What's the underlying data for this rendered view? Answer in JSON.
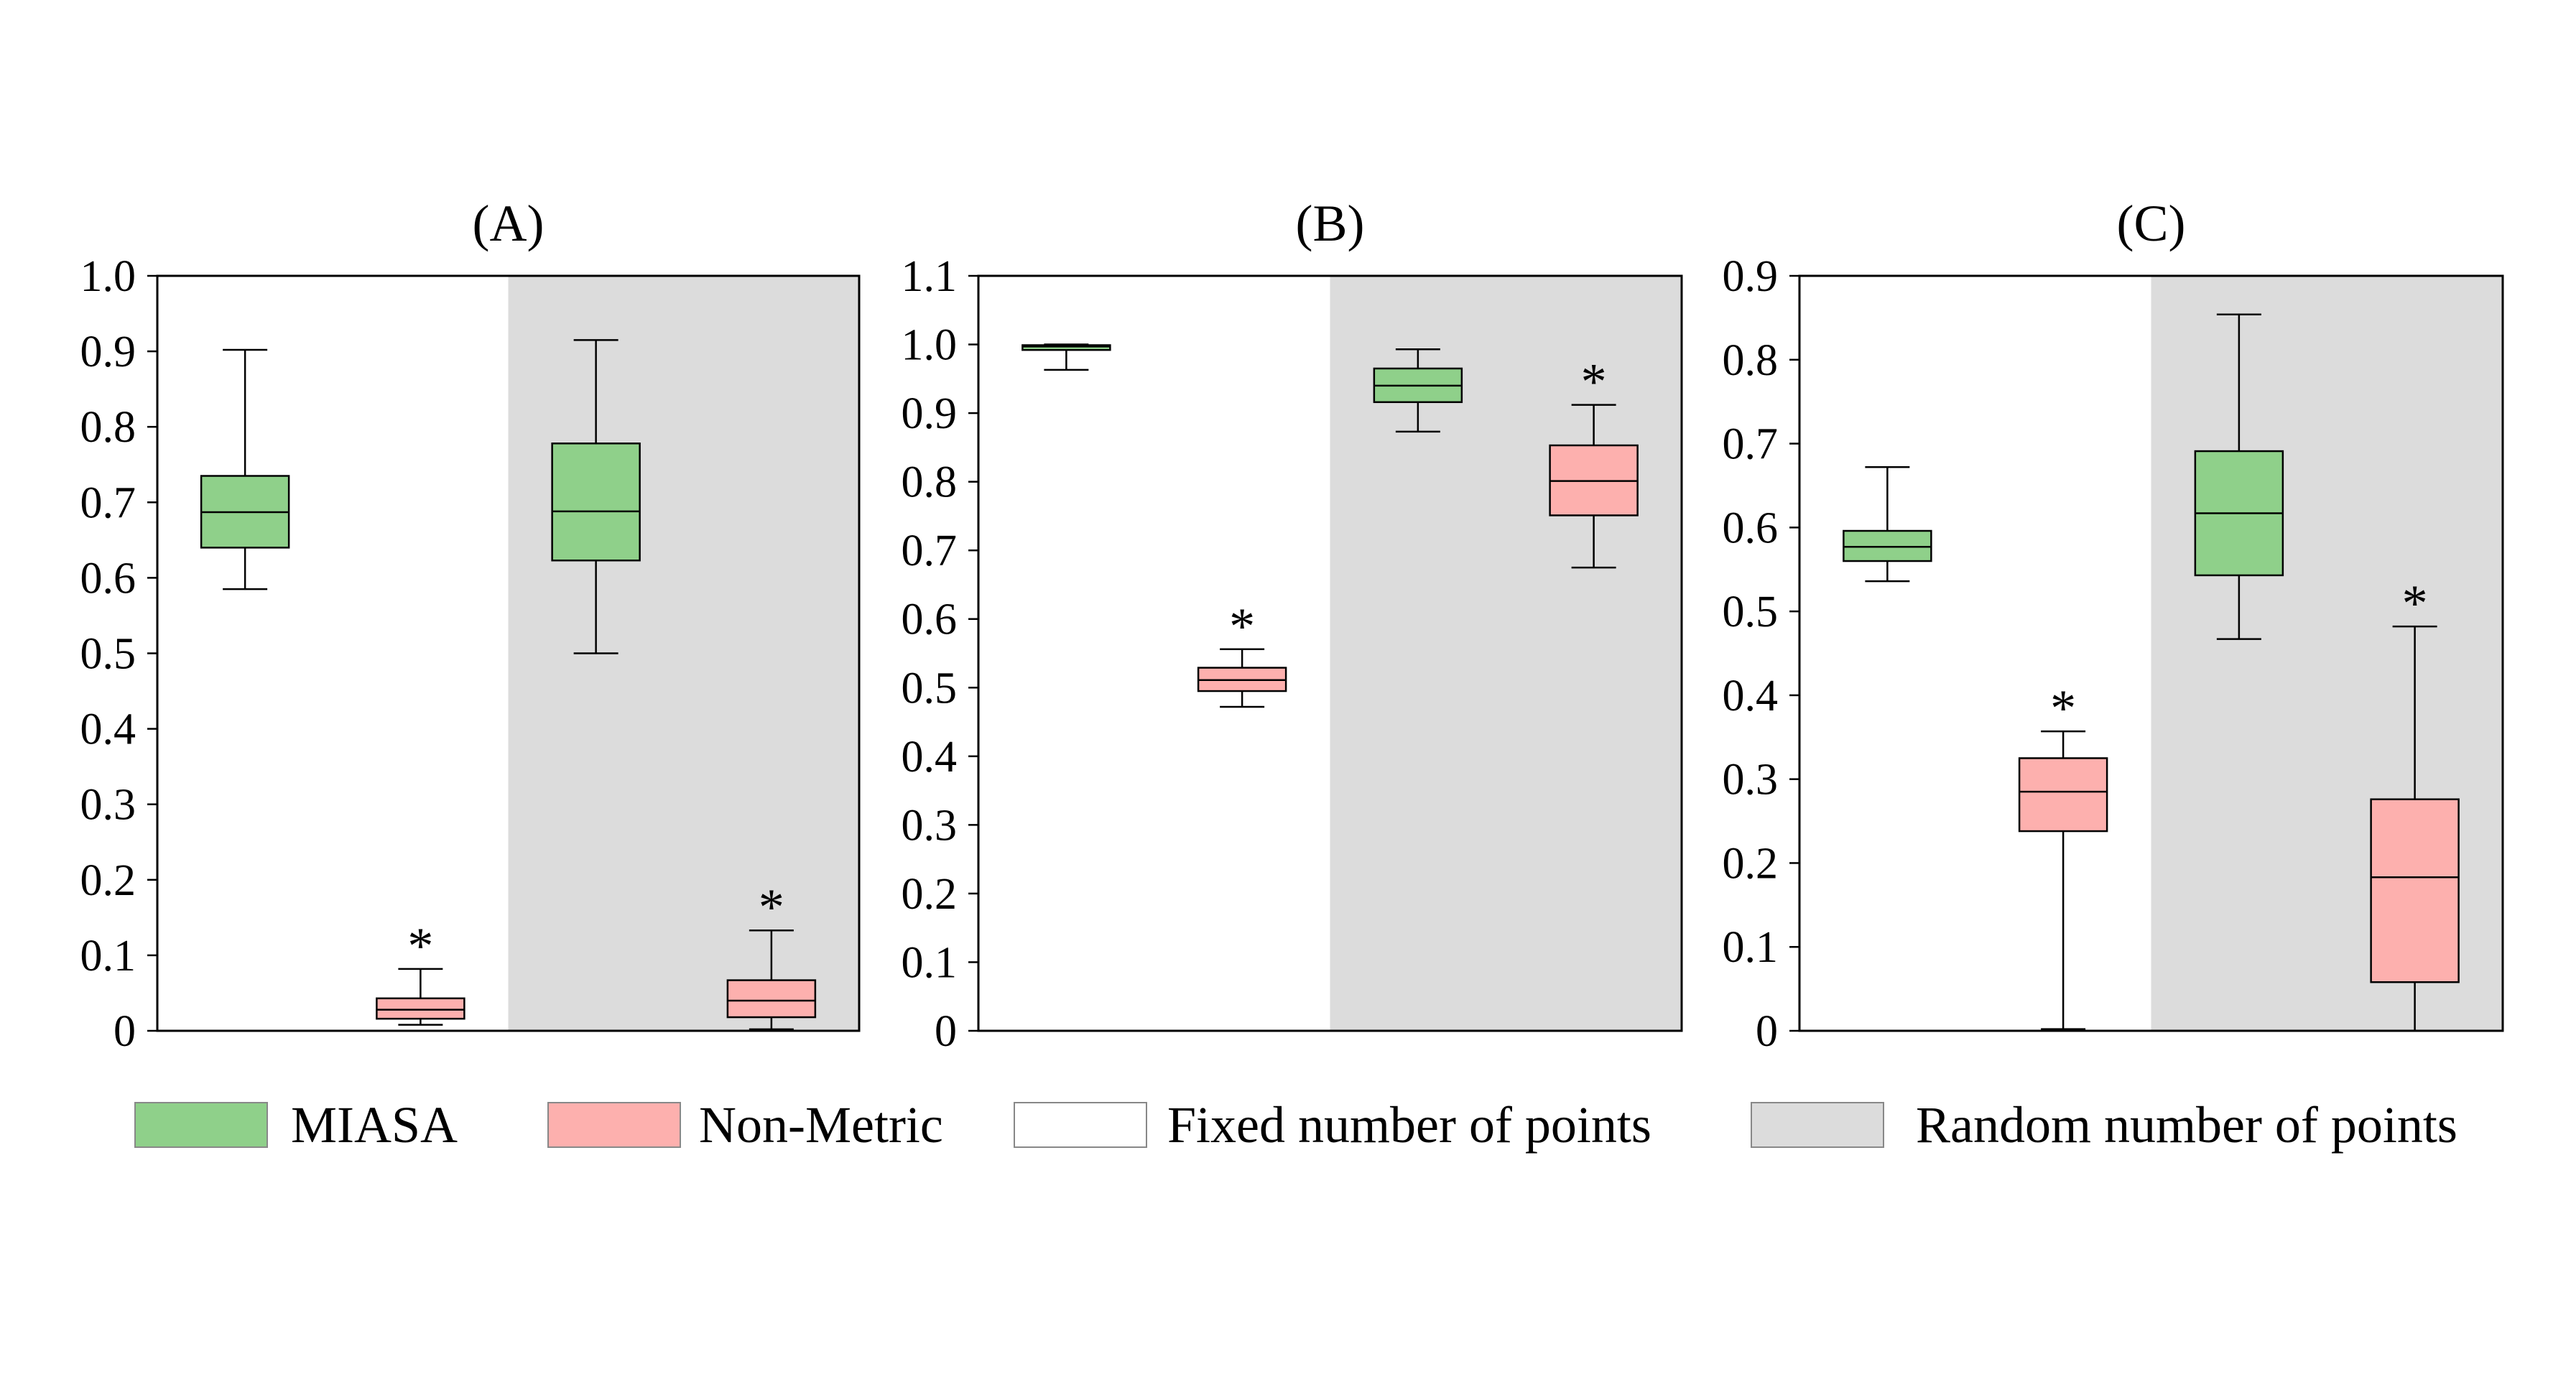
{
  "colors": {
    "miasa": "#8fd08a",
    "non_metric": "#fdb0ae",
    "fixed_bg": "#ffffff",
    "random_bg": "#dcdcdc",
    "stroke": "#000000"
  },
  "legend": [
    {
      "label": "MIASA",
      "color": "#8fd08a"
    },
    {
      "label": "Non-Metric",
      "color": "#fdb0ae"
    },
    {
      "label": "Fixed number of points",
      "color": "#ffffff"
    },
    {
      "label": "Random number of points",
      "color": "#dcdcdc"
    }
  ],
  "chart_data": [
    {
      "type": "box",
      "title": "(A)",
      "ylim": [
        0,
        1.0
      ],
      "yticks": [
        "0",
        "0.1",
        "0.2",
        "0.3",
        "0.4",
        "0.5",
        "0.6",
        "0.7",
        "0.8",
        "0.9",
        "1.0"
      ],
      "groups": [
        {
          "condition": "Fixed number of points",
          "boxes": [
            {
              "method": "MIASA",
              "min": 0.585,
              "q1": 0.64,
              "median": 0.687,
              "q3": 0.735,
              "max": 0.902,
              "star": ""
            },
            {
              "method": "Non-Metric",
              "min": 0.008,
              "q1": 0.016,
              "median": 0.028,
              "q3": 0.043,
              "max": 0.082,
              "star": "*"
            }
          ]
        },
        {
          "condition": "Random number of points",
          "boxes": [
            {
              "method": "MIASA",
              "min": 0.5,
              "q1": 0.623,
              "median": 0.688,
              "q3": 0.778,
              "max": 0.915,
              "star": ""
            },
            {
              "method": "Non-Metric",
              "min": 0.002,
              "q1": 0.018,
              "median": 0.04,
              "q3": 0.067,
              "max": 0.133,
              "star": "*"
            }
          ]
        }
      ]
    },
    {
      "type": "box",
      "title": "(B)",
      "ylim": [
        0,
        1.1
      ],
      "yticks": [
        "0",
        "0.1",
        "0.2",
        "0.3",
        "0.4",
        "0.5",
        "0.6",
        "0.7",
        "0.8",
        "0.9",
        "1.0",
        "1.1"
      ],
      "groups": [
        {
          "condition": "Fixed number of points",
          "boxes": [
            {
              "method": "MIASA",
              "min": 0.963,
              "q1": 0.992,
              "median": 0.997,
              "q3": 0.999,
              "max": 1.0,
              "star": ""
            },
            {
              "method": "Non-Metric",
              "min": 0.472,
              "q1": 0.495,
              "median": 0.511,
              "q3": 0.529,
              "max": 0.556,
              "star": "*"
            }
          ]
        },
        {
          "condition": "Random number of points",
          "boxes": [
            {
              "method": "MIASA",
              "min": 0.873,
              "q1": 0.916,
              "median": 0.94,
              "q3": 0.965,
              "max": 0.993,
              "star": ""
            },
            {
              "method": "Non-Metric",
              "min": 0.675,
              "q1": 0.751,
              "median": 0.801,
              "q3": 0.853,
              "max": 0.912,
              "star": "*"
            }
          ]
        }
      ]
    },
    {
      "type": "box",
      "title": "(C)",
      "ylim": [
        0,
        0.9
      ],
      "yticks": [
        "0",
        "0.1",
        "0.2",
        "0.3",
        "0.4",
        "0.5",
        "0.6",
        "0.7",
        "0.8",
        "0.9"
      ],
      "groups": [
        {
          "condition": "Fixed number of points",
          "boxes": [
            {
              "method": "MIASA",
              "min": 0.536,
              "q1": 0.56,
              "median": 0.577,
              "q3": 0.596,
              "max": 0.672,
              "star": ""
            },
            {
              "method": "Non-Metric",
              "min": 0.002,
              "q1": 0.238,
              "median": 0.285,
              "q3": 0.325,
              "max": 0.357,
              "star": "*"
            }
          ]
        },
        {
          "condition": "Random number of points",
          "boxes": [
            {
              "method": "MIASA",
              "min": 0.467,
              "q1": 0.543,
              "median": 0.617,
              "q3": 0.691,
              "max": 0.854,
              "star": ""
            },
            {
              "method": "Non-Metric",
              "min": 0.0,
              "q1": 0.058,
              "median": 0.183,
              "q3": 0.276,
              "max": 0.482,
              "star": "*"
            }
          ]
        }
      ]
    }
  ]
}
